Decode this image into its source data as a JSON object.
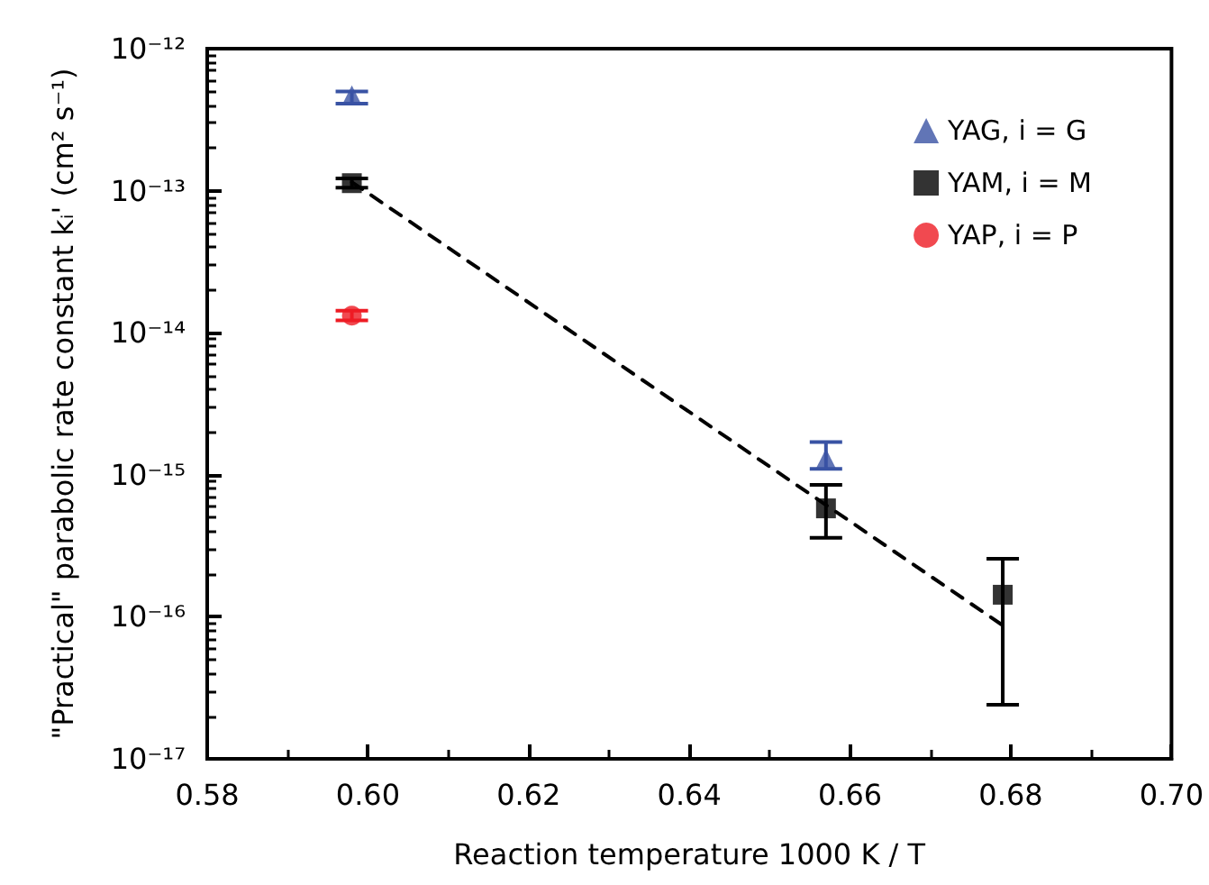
{
  "chart_data": {
    "type": "scatter",
    "xlabel": "Reaction temperature 1000 K / T",
    "ylabel": "\"Practical\" parabolic rate constant kᵢ' (cm² s⁻¹)",
    "xlim": [
      0.58,
      0.7
    ],
    "xticks": [
      {
        "value": 0.58,
        "label": "0.58"
      },
      {
        "value": 0.6,
        "label": "0.60"
      },
      {
        "value": 0.62,
        "label": "0.62"
      },
      {
        "value": 0.64,
        "label": "0.64"
      },
      {
        "value": 0.66,
        "label": "0.66"
      },
      {
        "value": 0.68,
        "label": "0.68"
      },
      {
        "value": 0.7,
        "label": "0.70"
      }
    ],
    "ylim": [
      1e-17,
      1e-12
    ],
    "yticks": [
      {
        "value": 1e-17,
        "label": "10⁻¹⁷"
      },
      {
        "value": 1e-16,
        "label": "10⁻¹⁶"
      },
      {
        "value": 1e-15,
        "label": "10⁻¹⁵"
      },
      {
        "value": 1e-14,
        "label": "10⁻¹⁴"
      },
      {
        "value": 1e-13,
        "label": "10⁻¹³"
      },
      {
        "value": 1e-12,
        "label": "10⁻¹²"
      }
    ],
    "log": "y",
    "grid": false,
    "legend": "top right",
    "series": [
      {
        "name": "YAG, i = G",
        "color": "#3953a4",
        "marker": "triangle",
        "x": [
          0.598,
          0.657
        ],
        "values": [
          4.7e-13,
          1.3e-15
        ],
        "errors": [
          [
            4.1e-13,
            5e-13
          ],
          [
            1.1e-15,
            1.7e-15
          ]
        ]
      },
      {
        "name": "YAM, i = M",
        "color": "#000000",
        "marker": "square",
        "x": [
          0.598,
          0.657,
          0.679
        ],
        "values": [
          1.13e-13,
          5.8e-16,
          1.43e-16
        ],
        "errors": [
          [
            1.05e-13,
            1.22e-13
          ],
          [
            3.6e-16,
            8.5e-16
          ],
          [
            2.4e-17,
            2.56e-16
          ]
        ]
      },
      {
        "name": "YAP, i = P",
        "color": "#ed1c24",
        "marker": "circle",
        "x": [
          0.598
        ],
        "values": [
          1.32e-14
        ],
        "errors": [
          [
            1.22e-14,
            1.43e-14
          ]
        ]
      },
      {
        "type": "line",
        "color": "#000000",
        "marker": "none",
        "line_style": "dashed",
        "x": [
          0.598,
          0.679
        ],
        "values": [
          1.15e-13,
          8.7e-17
        ]
      }
    ]
  }
}
